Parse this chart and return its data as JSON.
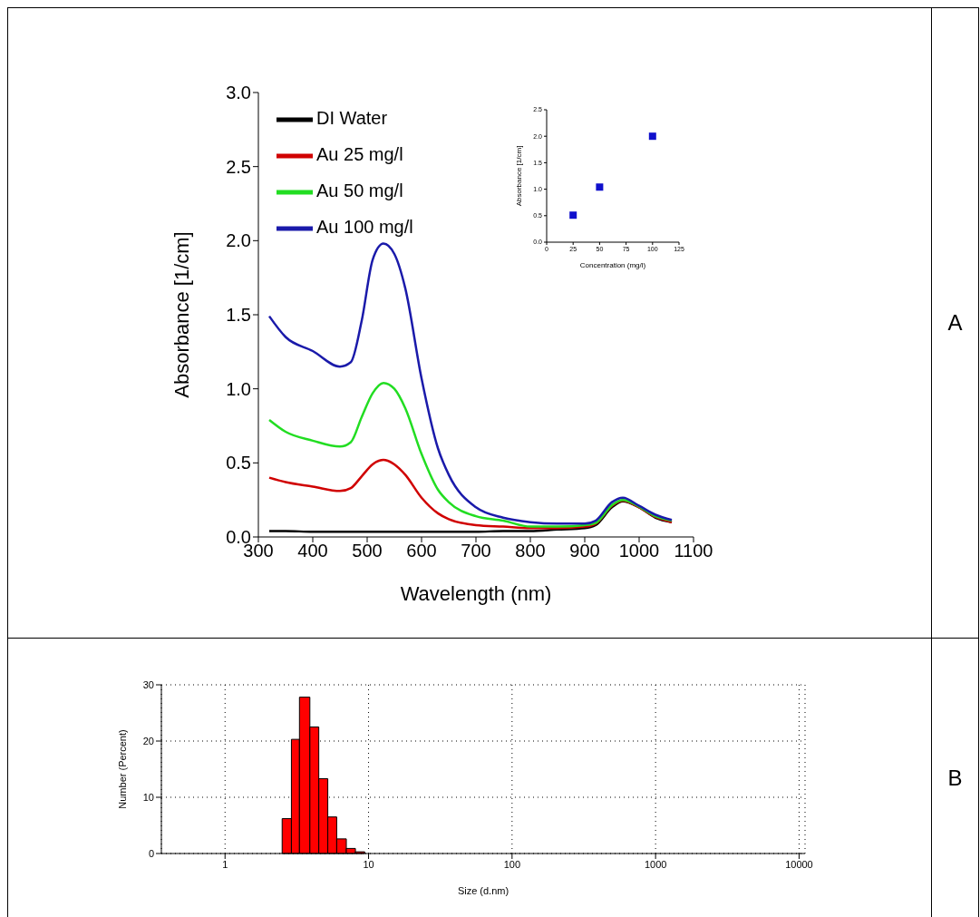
{
  "chart_data": [
    {
      "type": "line",
      "xlabel": "Wavelength (nm)",
      "ylabel": "Absorbance [1/cm]",
      "annotations": [
        "A"
      ],
      "legend": "top left",
      "line_style": "solid",
      "marker": "none",
      "x": [
        320,
        350,
        400,
        450,
        470,
        490,
        510,
        530,
        550,
        570,
        600,
        630,
        650,
        700,
        750,
        800,
        850,
        900,
        920,
        950,
        970,
        1000,
        1030,
        1060
      ],
      "series": [
        {
          "name": "DI Water",
          "color": "#000000",
          "values": [
            0.04,
            0.04,
            0.035,
            0.035,
            0.035,
            0.035,
            0.035,
            0.035,
            0.035,
            0.035,
            0.035,
            0.035,
            0.035,
            0.035,
            0.04,
            0.04,
            0.05,
            0.06,
            0.08,
            0.2,
            0.24,
            0.2,
            0.13,
            0.1
          ]
        },
        {
          "name": "Au 25 mg/l",
          "color": "#d00000",
          "values": [
            0.4,
            0.37,
            0.34,
            0.31,
            0.33,
            0.41,
            0.49,
            0.52,
            0.49,
            0.42,
            0.265,
            0.16,
            0.12,
            0.08,
            0.07,
            0.06,
            0.06,
            0.07,
            0.09,
            0.21,
            0.245,
            0.2,
            0.135,
            0.1
          ]
        },
        {
          "name": "Au 50 mg/l",
          "color": "#22dd22",
          "values": [
            0.79,
            0.71,
            0.65,
            0.61,
            0.64,
            0.81,
            0.97,
            1.04,
            1.0,
            0.87,
            0.56,
            0.32,
            0.235,
            0.14,
            0.11,
            0.07,
            0.07,
            0.08,
            0.095,
            0.215,
            0.25,
            0.205,
            0.14,
            0.11
          ]
        },
        {
          "name": "Au 100 mg/l",
          "color": "#1a1aaa",
          "values": [
            1.49,
            1.35,
            1.255,
            1.15,
            1.18,
            1.46,
            1.87,
            1.98,
            1.91,
            1.68,
            1.07,
            0.6,
            0.42,
            0.2,
            0.13,
            0.1,
            0.09,
            0.09,
            0.11,
            0.235,
            0.265,
            0.21,
            0.15,
            0.115
          ]
        }
      ],
      "xlim": [
        300,
        1100
      ],
      "xticks": [
        300,
        400,
        500,
        600,
        700,
        800,
        900,
        1000,
        1100
      ],
      "ylim": [
        0,
        3
      ],
      "yticks": [
        {
          "value": 0,
          "label": "0.0"
        },
        {
          "value": 0.5,
          "label": "0.5"
        },
        {
          "value": 1,
          "label": "1.0"
        },
        {
          "value": 1.5,
          "label": "1.5"
        },
        {
          "value": 2,
          "label": "2.0"
        },
        {
          "value": 2.5,
          "label": "2.5"
        },
        {
          "value": 3,
          "label": "3.0"
        }
      ],
      "grid": false
    },
    {
      "type": "scatter",
      "xlabel": "Concentration (mg/l)",
      "ylabel": "Absorbance [1/cm]",
      "marker": "square",
      "color": "#1010cc",
      "x": [
        25,
        50,
        100
      ],
      "values": [
        0.51,
        1.04,
        2.0
      ],
      "xlim": [
        0,
        125
      ],
      "xticks": [
        0,
        25,
        50,
        75,
        100,
        125
      ],
      "ylim": [
        0,
        2.5
      ],
      "yticks": [
        {
          "value": 0,
          "label": "0.0"
        },
        {
          "value": 0.5,
          "label": "0.5"
        },
        {
          "value": 1,
          "label": "1.0"
        },
        {
          "value": 1.5,
          "label": "1.5"
        },
        {
          "value": 2,
          "label": "2.0"
        },
        {
          "value": 2.5,
          "label": "2.5"
        }
      ]
    },
    {
      "type": "histogram",
      "xlabel": "Size (d.nm)",
      "ylabel": "Number (Percent)",
      "annotations": [
        "B"
      ],
      "color": "#ff0000",
      "log": "x",
      "grid": true,
      "bins": [
        2.5,
        2.9,
        3.3,
        3.9,
        4.5,
        5.2,
        6.0,
        7.0,
        8.1,
        9.4
      ],
      "values": [
        6.2,
        20.3,
        27.8,
        22.5,
        13.3,
        6.5,
        2.6,
        0.9,
        0.3
      ],
      "xlim": [
        0.36,
        11000
      ],
      "xticks": [
        1,
        10,
        100,
        1000,
        10000
      ],
      "ylim": [
        0,
        30
      ],
      "yticks": [
        0,
        10,
        20,
        30
      ]
    }
  ]
}
